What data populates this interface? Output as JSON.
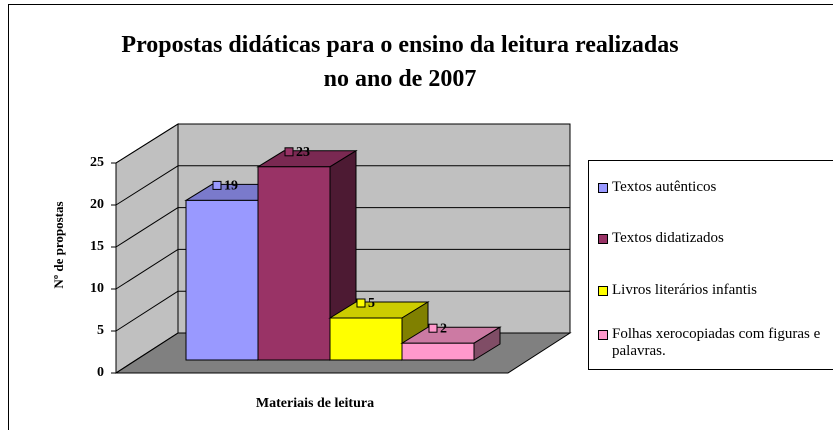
{
  "chart_data": {
    "type": "bar",
    "title": "Propostas didáticas para o ensino da leitura realizadas no ano de 2007",
    "x_label": "Materiais de leitura",
    "y_label": "Nº de propostas",
    "categories": [
      null
    ],
    "series": [
      {
        "name": "Textos autênticos",
        "color": "#9999ff",
        "values": [
          19
        ]
      },
      {
        "name": "Textos didatizados",
        "color": "#993366",
        "values": [
          23
        ]
      },
      {
        "name": "Livros literários infantis",
        "color": "#ffff00",
        "values": [
          5
        ]
      },
      {
        "name": "Folhas xerocopiadas com figuras e palavras.",
        "color": "#ff99cc",
        "values": [
          2
        ]
      }
    ],
    "ylim": [
      0,
      25
    ],
    "yticks": [
      0,
      5,
      10,
      15,
      20,
      25
    ],
    "grid": true,
    "legend": "right",
    "data_labels": true
  }
}
